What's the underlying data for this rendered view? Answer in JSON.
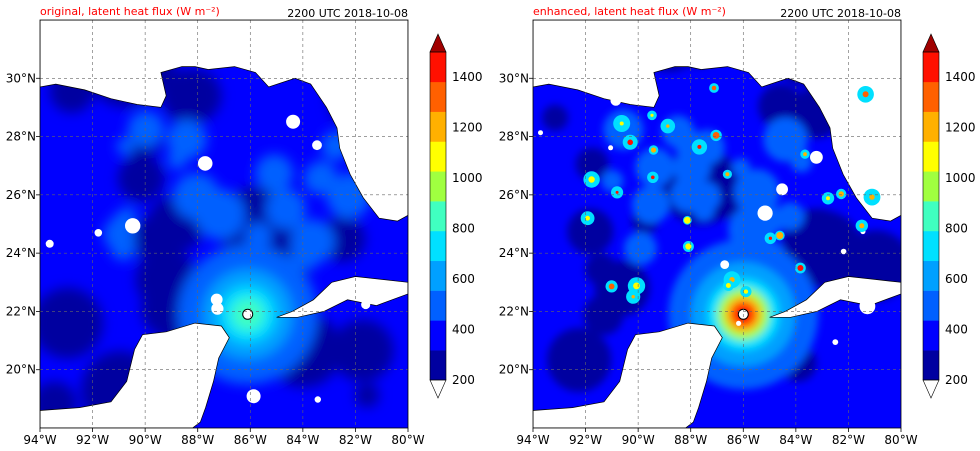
{
  "chart_data": [
    {
      "type": "heatmap",
      "title": "original, latent heat flux (W m⁻²)",
      "title_color": "#ff0000",
      "time_label": "2200 UTC 2018-10-08",
      "x_ticks": [
        "94°W",
        "92°W",
        "90°W",
        "88°W",
        "86°W",
        "84°W",
        "82°W",
        "80°W"
      ],
      "y_ticks": [
        "20°N",
        "22°N",
        "24°N",
        "26°N",
        "28°N",
        "30°N"
      ],
      "xlim": [
        -94,
        -80
      ],
      "ylim": [
        18,
        32
      ],
      "grid": true,
      "colorbar": {
        "ticks": [
          "200",
          "400",
          "600",
          "800",
          "1000",
          "1200",
          "1400"
        ],
        "range": [
          200,
          1500
        ],
        "extend": "both"
      },
      "hurricane_eye": {
        "lon": -86.1,
        "lat": 21.9
      },
      "typical_over_water": "300-500",
      "max_near_eye": "700"
    },
    {
      "type": "heatmap",
      "title": "enhanced, latent heat flux (W m⁻²)",
      "title_color": "#ff0000",
      "time_label": "2200 UTC 2018-10-08",
      "x_ticks": [
        "94°W",
        "92°W",
        "90°W",
        "88°W",
        "86°W",
        "84°W",
        "82°W",
        "80°W"
      ],
      "y_ticks": [
        "20°N",
        "22°N",
        "24°N",
        "26°N",
        "28°N",
        "30°N"
      ],
      "xlim": [
        -94,
        -80
      ],
      "ylim": [
        18,
        32
      ],
      "grid": true,
      "colorbar": {
        "ticks": [
          "200",
          "400",
          "600",
          "800",
          "1000",
          "1200",
          "1400"
        ],
        "range": [
          200,
          1500
        ],
        "extend": "both"
      },
      "hurricane_eye": {
        "lon": -86.0,
        "lat": 21.9
      },
      "typical_over_water": "300-600",
      "max_near_eye": "1400"
    }
  ],
  "colormap": [
    "#0000a0",
    "#0000ff",
    "#0060ff",
    "#00a0ff",
    "#00e0ff",
    "#40ffc0",
    "#a0ff40",
    "#ffff00",
    "#ffb000",
    "#ff6000",
    "#ff1000",
    "#a00000"
  ],
  "colors": {
    "land": "#ffffff",
    "coast": "#000000",
    "grid": "#666666"
  }
}
